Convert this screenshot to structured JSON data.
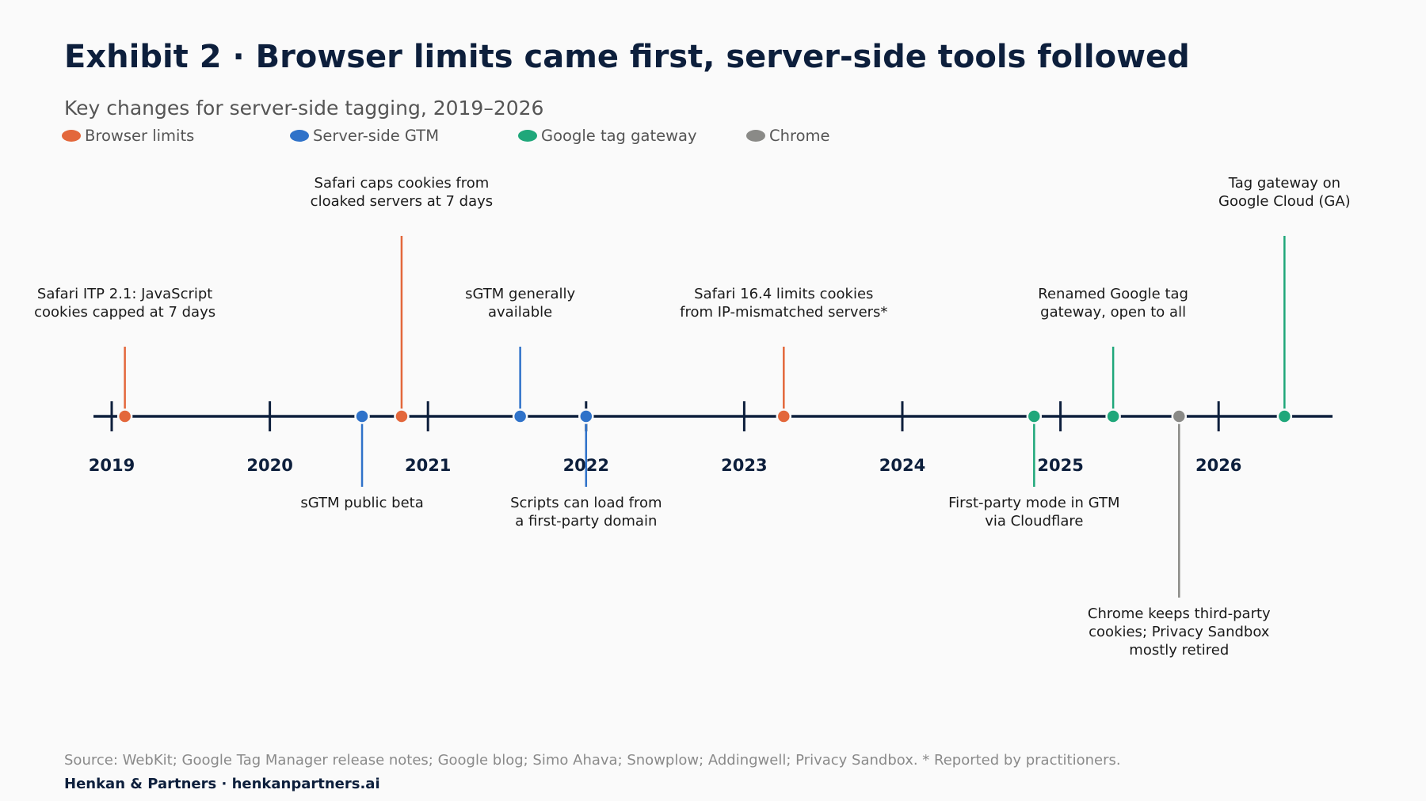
{
  "header": {
    "title": "Exhibit 2 · Browser limits came first, server-side tools followed",
    "subtitle": "Key changes for server-side tagging, 2019–2026"
  },
  "legend": [
    {
      "label": "Browser limits",
      "color": "#e3673b"
    },
    {
      "label": "Server-side GTM",
      "color": "#2f72c9"
    },
    {
      "label": "Google tag gateway",
      "color": "#1fa77a"
    },
    {
      "label": "Chrome",
      "color": "#8a8a87"
    }
  ],
  "chart_data": {
    "type": "timeline",
    "title": "Exhibit 2 · Browser limits came first, server-side tools followed",
    "subtitle": "Key changes for server-side tagging, 2019–2026",
    "x_domain": [
      "2019-01-01",
      "2026-12-31"
    ],
    "ticks": [
      "2019",
      "2020",
      "2021",
      "2022",
      "2023",
      "2024",
      "2025",
      "2026"
    ],
    "axis_color": "#0d1f3c",
    "events": [
      {
        "date": "2019-02",
        "category": "Browser limits",
        "color": "#e3673b",
        "lines": [
          "Safari ITP 2.1: JavaScript",
          "cookies capped at 7 days"
        ]
      },
      {
        "date": "2020-08",
        "category": "Server-side GTM",
        "color": "#2f72c9",
        "lines": [
          "sGTM public beta"
        ]
      },
      {
        "date": "2020-11",
        "category": "Browser limits",
        "color": "#e3673b",
        "lines": [
          "Safari caps cookies from",
          "cloaked servers at 7 days"
        ]
      },
      {
        "date": "2021-08",
        "category": "Server-side GTM",
        "color": "#2f72c9",
        "lines": [
          "sGTM generally",
          "available"
        ]
      },
      {
        "date": "2022-01",
        "category": "Server-side GTM",
        "color": "#2f72c9",
        "lines": [
          "Scripts can load from",
          "a first-party domain"
        ]
      },
      {
        "date": "2023-04",
        "category": "Browser limits",
        "color": "#e3673b",
        "lines": [
          "Safari 16.4 limits cookies",
          "from IP-mismatched servers*"
        ]
      },
      {
        "date": "2024-11",
        "category": "Google tag gateway",
        "color": "#1fa77a",
        "lines": [
          "First-party mode in GTM",
          "via Cloudflare"
        ]
      },
      {
        "date": "2025-05",
        "category": "Google tag gateway",
        "color": "#1fa77a",
        "lines": [
          "Renamed Google tag",
          "gateway, open to all"
        ]
      },
      {
        "date": "2025-10",
        "category": "Chrome",
        "color": "#8a8a87",
        "lines": [
          "Chrome keeps third-party",
          "cookies; Privacy Sandbox",
          "mostly retired"
        ]
      },
      {
        "date": "2026-06",
        "category": "Google tag gateway",
        "color": "#1fa77a",
        "lines": [
          "Tag gateway on",
          "Google Cloud (GA)"
        ]
      }
    ]
  },
  "footer": {
    "source": "Source: WebKit; Google Tag Manager release notes; Google blog; Simo Ahava; Snowplow; Addingwell; Privacy Sandbox. * Reported by practitioners.",
    "brand": "Henkan & Partners · henkanpartners.ai"
  }
}
